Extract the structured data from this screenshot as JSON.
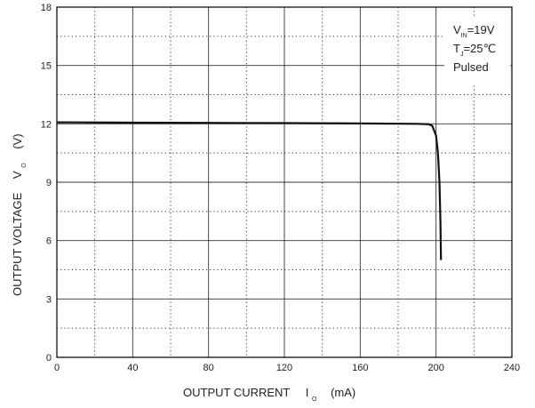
{
  "chart_data": {
    "type": "line",
    "xlabel": "OUTPUT CURRENT",
    "xlabel_symbol": "I",
    "xlabel_subscript": "O",
    "xlabel_unit": "(mA)",
    "ylabel": "OUTPUT VOLTAGE",
    "ylabel_symbol": "V",
    "ylabel_subscript": "O",
    "ylabel_unit": "(V)",
    "xlim": [
      0,
      240
    ],
    "ylim": [
      0,
      18
    ],
    "x_ticks": [
      0,
      40,
      80,
      120,
      160,
      200,
      240
    ],
    "y_ticks": [
      0,
      3,
      6,
      9,
      12,
      15,
      18
    ],
    "grid": "solid major lines with dotted minor lines",
    "annotations": [
      {
        "main": "V",
        "sub": "IN",
        "rest": "=19V"
      },
      {
        "main": "T",
        "sub": "J",
        "rest": "=25℃"
      },
      {
        "main": "Pulsed",
        "sub": "",
        "rest": ""
      }
    ],
    "series": [
      {
        "color": "#111111",
        "points": [
          [
            0,
            12.08
          ],
          [
            40,
            12.06
          ],
          [
            80,
            12.05
          ],
          [
            120,
            12.04
          ],
          [
            160,
            12.02
          ],
          [
            190,
            12.0
          ],
          [
            196,
            11.98
          ],
          [
            198,
            11.9
          ],
          [
            200,
            11.4
          ],
          [
            201,
            10.5
          ],
          [
            201.8,
            9.0
          ],
          [
            202.3,
            7.0
          ],
          [
            202.6,
            5.0
          ]
        ]
      }
    ]
  }
}
